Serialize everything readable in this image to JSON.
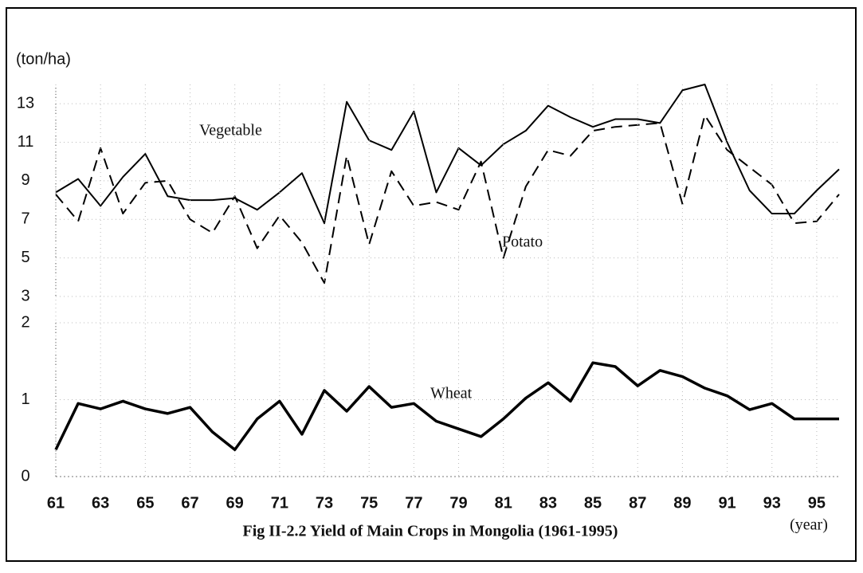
{
  "chart_data": [
    {
      "type": "line",
      "y_label": "(ton/ha)",
      "x": [
        61,
        62,
        63,
        64,
        65,
        66,
        67,
        68,
        69,
        70,
        71,
        72,
        73,
        74,
        75,
        76,
        77,
        78,
        79,
        80,
        81,
        82,
        83,
        84,
        85,
        86,
        87,
        88,
        89,
        90,
        91,
        92,
        93,
        94,
        95,
        96
      ],
      "xlim": [
        61,
        96
      ],
      "ylim": [
        3,
        14
      ],
      "yticks": [
        3,
        5,
        7,
        9,
        11,
        13
      ],
      "grid": true,
      "series": [
        {
          "name": "Vegetable",
          "color": "#000000",
          "line_style": "solid",
          "values": [
            8.4,
            9.1,
            7.7,
            9.2,
            10.4,
            8.2,
            8.0,
            8.0,
            8.1,
            7.5,
            8.4,
            9.4,
            6.8,
            13.1,
            11.1,
            10.6,
            12.6,
            8.4,
            10.7,
            9.8,
            10.9,
            11.6,
            12.9,
            12.3,
            11.8,
            12.2,
            12.2,
            12.0,
            13.7,
            14.0,
            11.0,
            8.5,
            7.3,
            7.3,
            8.5,
            9.6
          ]
        },
        {
          "name": "Potato",
          "color": "#000000",
          "line_style": "dash",
          "values": [
            8.3,
            6.9,
            10.7,
            7.3,
            8.9,
            9.0,
            7.0,
            6.3,
            8.2,
            5.5,
            7.2,
            5.8,
            3.7,
            10.3,
            5.7,
            9.5,
            7.7,
            7.9,
            7.5,
            10.0,
            5.0,
            8.7,
            10.6,
            10.3,
            11.6,
            11.8,
            11.9,
            12.0,
            7.8,
            12.4,
            10.6,
            9.7,
            8.8,
            6.8,
            6.9,
            8.3
          ]
        }
      ]
    },
    {
      "type": "line",
      "title": "Fig II-2.2 Yield of Main Crops in Mongolia (1961-1995)",
      "x_label": "(year)",
      "x": [
        61,
        62,
        63,
        64,
        65,
        66,
        67,
        68,
        69,
        70,
        71,
        72,
        73,
        74,
        75,
        76,
        77,
        78,
        79,
        80,
        81,
        82,
        83,
        84,
        85,
        86,
        87,
        88,
        89,
        90,
        91,
        92,
        93,
        94,
        95,
        96
      ],
      "xlim": [
        61,
        96
      ],
      "xticks": [
        61,
        63,
        65,
        67,
        69,
        71,
        73,
        75,
        77,
        79,
        81,
        83,
        85,
        87,
        89,
        91,
        93,
        95
      ],
      "ylim": [
        0,
        2
      ],
      "yticks": [
        0,
        1,
        2
      ],
      "grid": true,
      "series": [
        {
          "name": "Wheat",
          "color": "#000000",
          "line_style": "solid",
          "line_width": 3.5,
          "values": [
            0.35,
            0.95,
            0.88,
            0.98,
            0.88,
            0.82,
            0.9,
            0.58,
            0.35,
            0.75,
            0.98,
            0.55,
            1.12,
            0.85,
            1.17,
            0.9,
            0.95,
            0.72,
            0.62,
            0.52,
            0.75,
            1.02,
            1.22,
            0.98,
            1.48,
            1.43,
            1.18,
            1.38,
            1.3,
            1.15,
            1.05,
            0.87,
            0.95,
            0.75,
            0.75,
            0.75
          ]
        }
      ]
    }
  ]
}
